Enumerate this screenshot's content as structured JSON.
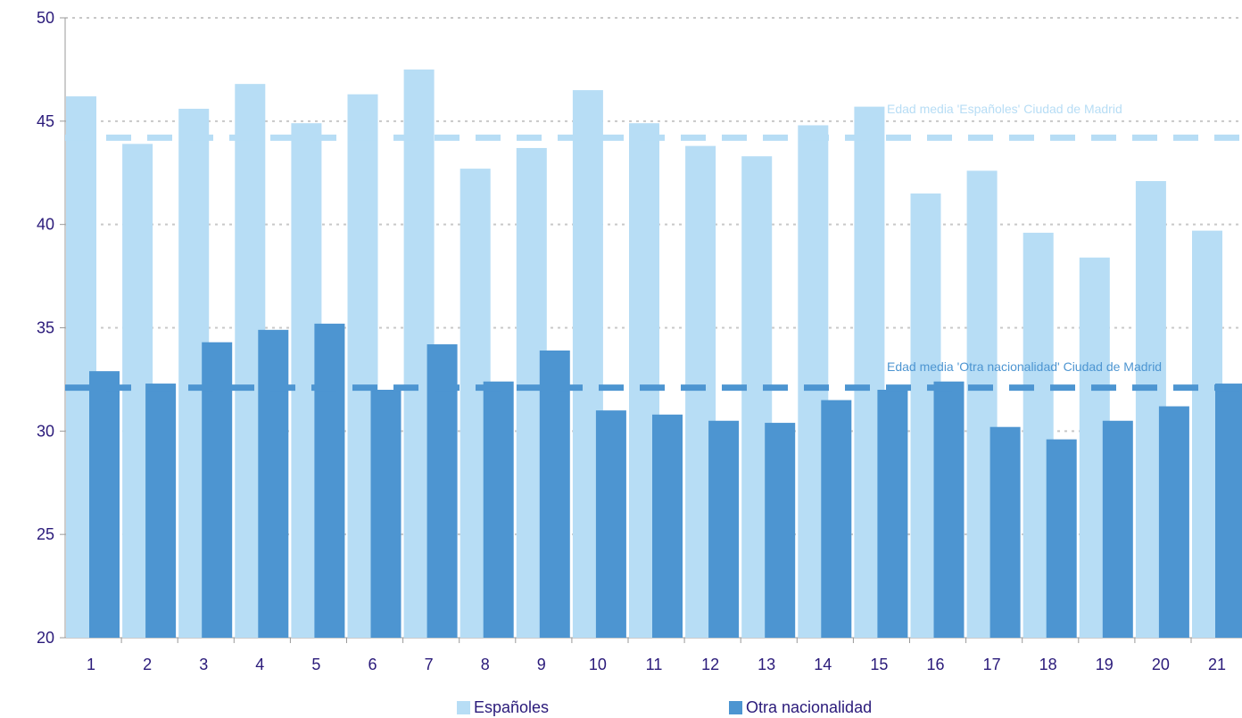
{
  "chart_data": {
    "type": "bar",
    "categories": [
      "1",
      "2",
      "3",
      "4",
      "5",
      "6",
      "7",
      "8",
      "9",
      "10",
      "11",
      "12",
      "13",
      "14",
      "15",
      "16",
      "17",
      "18",
      "19",
      "20",
      "21"
    ],
    "series": [
      {
        "name": "Españoles",
        "color": "#b7ddf5",
        "values": [
          46.2,
          43.9,
          45.6,
          46.8,
          44.9,
          46.3,
          47.5,
          42.7,
          43.7,
          46.5,
          44.9,
          43.8,
          43.3,
          44.8,
          45.7,
          41.5,
          42.6,
          39.6,
          38.4,
          42.1,
          39.7
        ]
      },
      {
        "name": "Otra nacionalidad",
        "color": "#4d95d1",
        "values": [
          32.9,
          32.3,
          34.3,
          34.9,
          35.2,
          32.0,
          34.2,
          32.4,
          33.9,
          31.0,
          30.8,
          30.5,
          30.4,
          31.5,
          32.0,
          32.4,
          30.2,
          29.6,
          30.5,
          31.2,
          32.3
        ]
      }
    ],
    "reference_lines": [
      {
        "label": "Edad media 'Españoles' Ciudad de Madrid",
        "value": 44.2,
        "color": "#b7ddf5",
        "style": "dashed"
      },
      {
        "label": "Edad media 'Otra nacionalidad' Ciudad de Madrid",
        "value": 32.1,
        "color": "#4d95d1",
        "style": "dashed"
      }
    ],
    "ylim": [
      20,
      50
    ],
    "yticks": [
      20,
      25,
      30,
      35,
      40,
      45,
      50
    ],
    "grid": true,
    "legend_position": "bottom",
    "title": "",
    "xlabel": "",
    "ylabel": ""
  }
}
